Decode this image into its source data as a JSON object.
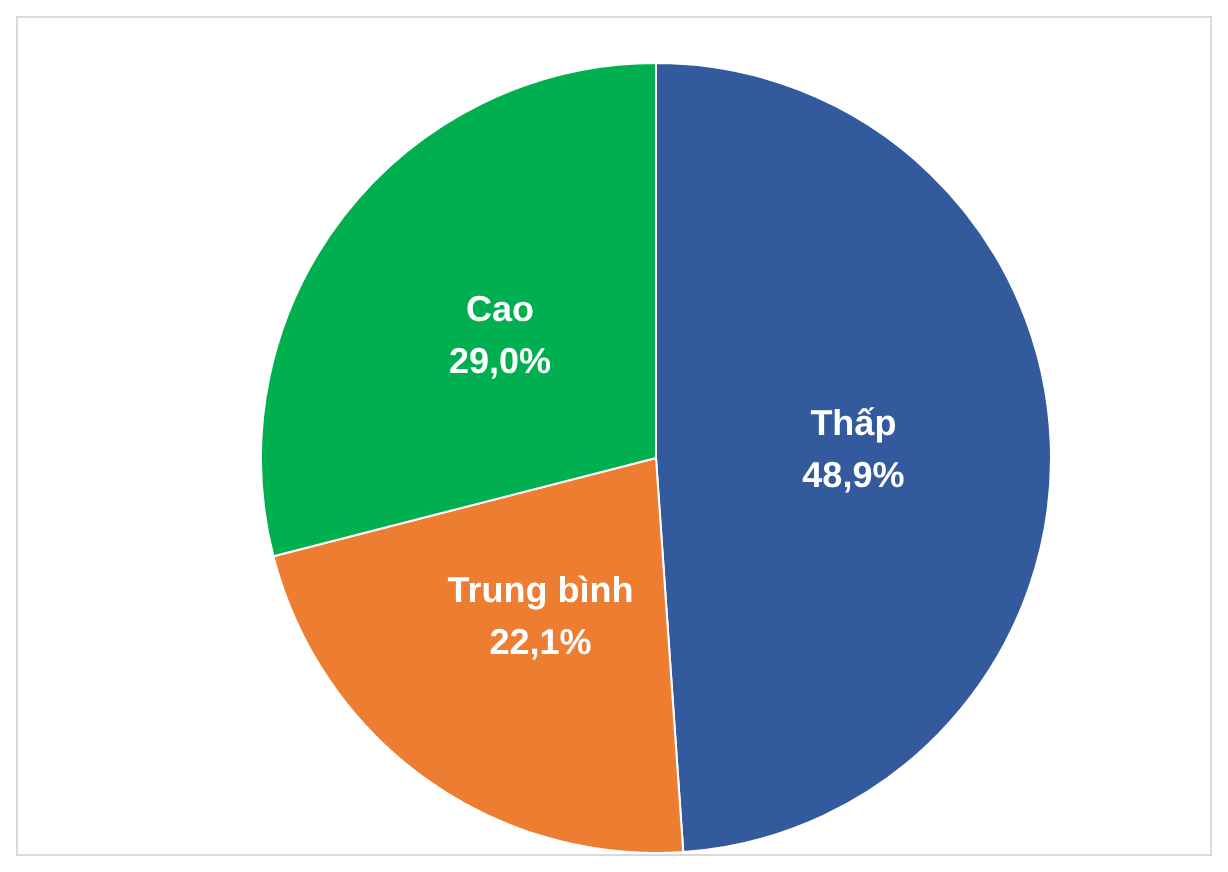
{
  "chart_data": {
    "type": "pie",
    "categories": [
      "Thấp",
      "Trung bình",
      "Cao"
    ],
    "values": [
      48.9,
      22.1,
      29.0
    ],
    "value_labels": [
      "48,9%",
      "22,1%",
      "29,0%"
    ],
    "colors": [
      "#335a9c",
      "#ed7d31",
      "#00b050"
    ],
    "legend": false
  }
}
